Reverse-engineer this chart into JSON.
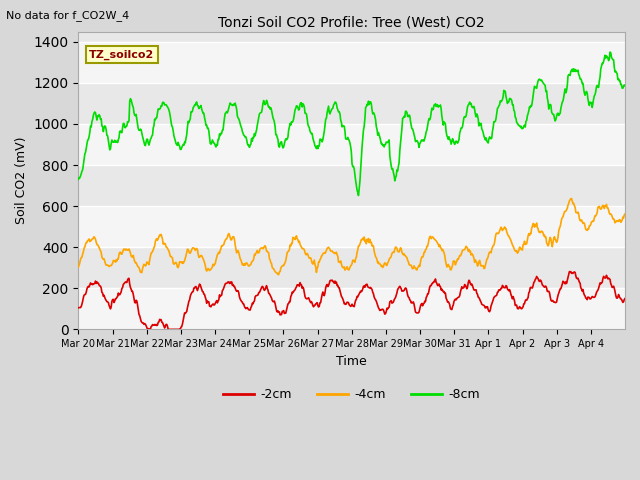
{
  "title": "Tonzi Soil CO2 Profile: Tree (West) CO2",
  "subtitle": "No data for f_CO2W_4",
  "ylabel": "Soil CO2 (mV)",
  "xlabel": "Time",
  "legend_label": "TZ_soilco2",
  "ylim": [
    0,
    1450
  ],
  "yticks": [
    0,
    200,
    400,
    600,
    800,
    1000,
    1200,
    1400
  ],
  "bg_color": "#d8d8d8",
  "plot_bg_color": "#e8e8e8",
  "stripe_color": "#d0d0d0",
  "line_colors": {
    "neg2cm": "#dd0000",
    "neg4cm": "#ffa500",
    "neg8cm": "#00dd00"
  },
  "line_labels": {
    "neg2cm": "-2cm",
    "neg4cm": "-4cm",
    "neg8cm": "-8cm"
  },
  "x_tick_labels": [
    "Mar 20",
    "Mar 21",
    "Mar 22",
    "Mar 23",
    "Mar 24",
    "Mar 25",
    "Mar 26",
    "Mar 27",
    "Mar 28",
    "Mar 29",
    "Mar 30",
    "Mar 31",
    "Apr 1",
    "Apr 2",
    "Apr 3",
    "Apr 4"
  ],
  "n_days": 16,
  "samples_per_day": 48
}
